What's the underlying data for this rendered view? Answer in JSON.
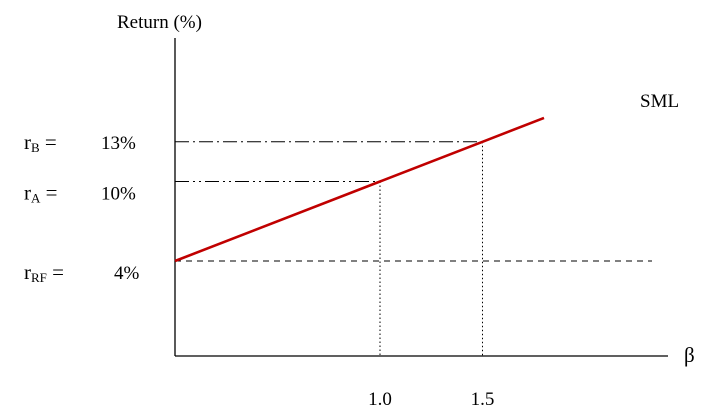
{
  "chart_data": {
    "type": "line",
    "ylabel": "Return (%)",
    "xlabel": "β",
    "series": [
      {
        "name": "SML",
        "color": "#c00000",
        "x": [
          0,
          1.0,
          1.5,
          1.8
        ],
        "y": [
          4,
          10,
          13,
          14.8
        ]
      }
    ],
    "x_ticks": [
      "1.0",
      "1.5"
    ],
    "reference_lines": {
      "rf": {
        "symbol": "r",
        "sub": "RF",
        "eq": " =",
        "value_label": "4%",
        "y": 4,
        "style": "dashed"
      },
      "a": {
        "symbol": "r",
        "sub": "A",
        "eq": " =",
        "value_label": "10%",
        "y": 10,
        "x": 1.0,
        "style": "dash-dot"
      },
      "b": {
        "symbol": "r",
        "sub": "B",
        "eq": " =",
        "value_label": "13%",
        "y": 13,
        "x": 1.5,
        "style": "dash-dot"
      }
    },
    "xlim": [
      0,
      1.85
    ],
    "ylim": [
      -3,
      16
    ],
    "grid": false,
    "colors": {
      "line": "#c00000",
      "axis": "#000000"
    }
  }
}
